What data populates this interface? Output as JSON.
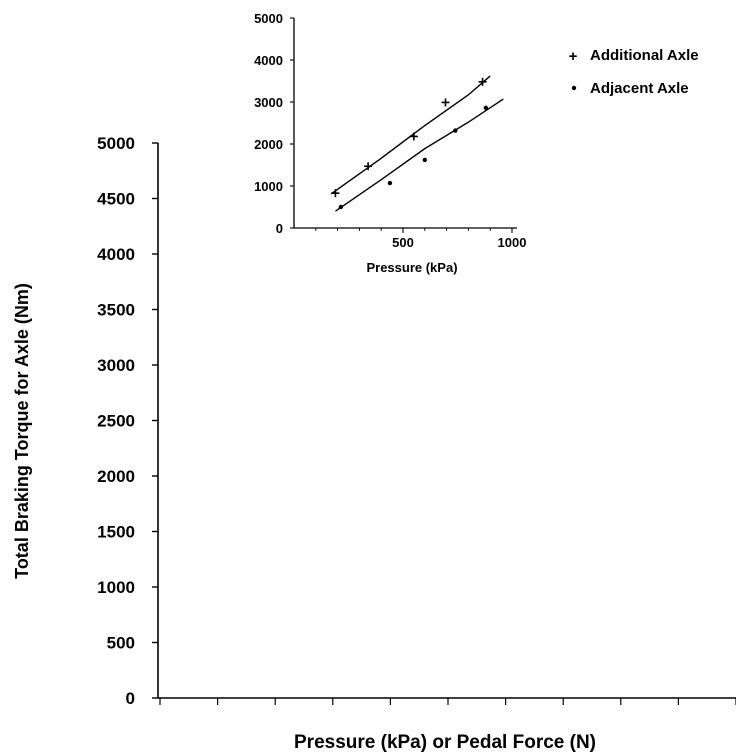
{
  "chart_data": [
    {
      "type": "line",
      "xlabel": "Pressure (kPa) or  Pedal Force (N)",
      "ylabel": "Total Braking Torque for Axle (Nm)",
      "ylim": [
        0,
        5000
      ],
      "y_ticks": [
        "0",
        "500",
        "1000",
        "1500",
        "2000",
        "2500",
        "3000",
        "3500",
        "4000",
        "4500",
        "5000"
      ],
      "x_tick_count": 11,
      "series": [],
      "grid": false
    },
    {
      "type": "scatter",
      "xlabel": "Pressure (kPa)",
      "xlim": [
        0,
        1000
      ],
      "ylim": [
        0,
        5000
      ],
      "x_ticks": [
        "500",
        "1000"
      ],
      "x_tick_values": [
        500,
        1000
      ],
      "y_ticks": [
        "0",
        "1000",
        "2000",
        "3000",
        "4000",
        "5000"
      ],
      "y_tick_values": [
        0,
        1000,
        2000,
        3000,
        4000,
        5000
      ],
      "legend_position": "top-right",
      "series": [
        {
          "name": "Additional Axle",
          "marker": "+",
          "points": [
            [
              190,
              830
            ],
            [
              340,
              1470
            ],
            [
              550,
              2180
            ],
            [
              695,
              2990
            ],
            [
              865,
              3480
            ]
          ],
          "fit": [
            [
              170,
              810
            ],
            [
              400,
              1660
            ],
            [
              600,
              2440
            ],
            [
              800,
              3170
            ],
            [
              900,
              3620
            ]
          ]
        },
        {
          "name": "Adjacent Axle",
          "marker": "•",
          "points": [
            [
              215,
              500
            ],
            [
              440,
              1070
            ],
            [
              600,
              1620
            ],
            [
              740,
              2320
            ],
            [
              880,
              2860
            ]
          ],
          "fit": [
            [
              190,
              400
            ],
            [
              400,
              1150
            ],
            [
              600,
              1890
            ],
            [
              800,
              2520
            ],
            [
              960,
              3070
            ]
          ]
        }
      ],
      "grid": false
    }
  ]
}
